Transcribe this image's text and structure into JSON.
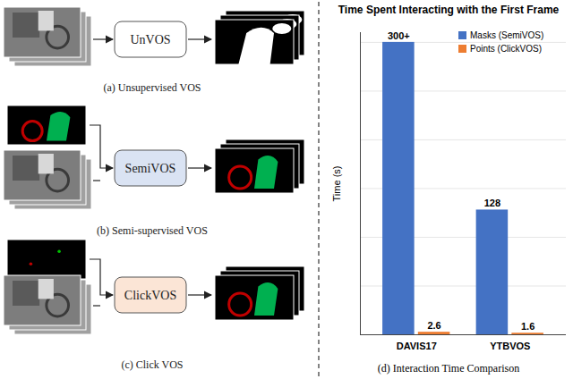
{
  "diagram": {
    "panels": [
      {
        "module": "UnVOS",
        "caption": "(a) Unsupervised VOS"
      },
      {
        "module": "SemiVOS",
        "caption": "(b) Semi-supervised VOS"
      },
      {
        "module": "ClickVOS",
        "caption": "(c) Click VOS"
      }
    ]
  },
  "chart_data": {
    "type": "bar",
    "title": "Time Spent Interacting with the First Frame",
    "caption": "(d) Interaction Time Comparison",
    "y_label": "Time (s)",
    "categories": [
      "DAVIS17",
      "YTBVOS"
    ],
    "series": [
      {
        "name": "Masks (SemiVOS)",
        "color": "#4472c4",
        "values": [
          300,
          128
        ],
        "value_labels": [
          "300+",
          "128"
        ]
      },
      {
        "name": "Points (ClickVOS)",
        "color": "#ed7d31",
        "values": [
          2.6,
          1.6
        ]
      }
    ],
    "ylim": [
      0,
      310
    ],
    "yticks": [
      0,
      50,
      100,
      150,
      200,
      250,
      300
    ],
    "grid": true,
    "data_labels": true,
    "tick_labels": "x",
    "legend": "top-right"
  }
}
